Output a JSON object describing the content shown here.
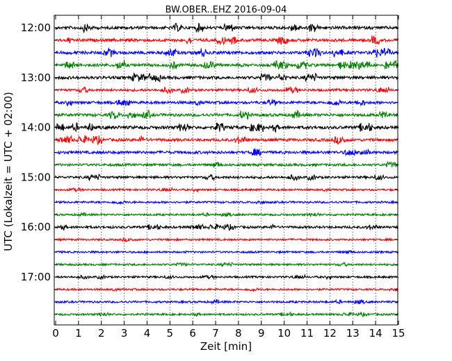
{
  "chart_data": {
    "type": "line",
    "title": "BW.OBER..EHZ 2016-09-04",
    "xlabel": "Zeit  [min]",
    "ylabel": "UTC (Lokalzeit = UTC + 02:00)",
    "xlim": [
      0,
      15
    ],
    "x_ticks": [
      "0",
      "1",
      "2",
      "3",
      "4",
      "5",
      "6",
      "7",
      "8",
      "9",
      "10",
      "11",
      "12",
      "13",
      "14",
      "15"
    ],
    "y_tick_labels": [
      "12:00",
      "13:00",
      "14:00",
      "15:00",
      "16:00",
      "17:00"
    ],
    "grid": "vertical dotted",
    "trace_interval_minutes": 15,
    "color_cycle": [
      "#000000",
      "#ff0000",
      "#0000ff",
      "#008000"
    ],
    "series": [
      {
        "start": "12:00",
        "level": 0.9
      },
      {
        "start": "12:15",
        "level": 0.9
      },
      {
        "start": "12:30",
        "level": 0.9
      },
      {
        "start": "12:45",
        "level": 0.9
      },
      {
        "start": "13:00",
        "level": 0.85
      },
      {
        "start": "13:15",
        "level": 0.6
      },
      {
        "start": "13:30",
        "level": 0.7
      },
      {
        "start": "13:45",
        "level": 0.85
      },
      {
        "start": "14:00",
        "level": 0.95
      },
      {
        "start": "14:15",
        "level": 0.85
      },
      {
        "start": "14:30",
        "level": 0.8
      },
      {
        "start": "14:45",
        "level": 0.6
      },
      {
        "start": "15:00",
        "level": 0.55
      },
      {
        "start": "15:15",
        "level": 0.3
      },
      {
        "start": "15:30",
        "level": 0.35
      },
      {
        "start": "15:45",
        "level": 0.3
      },
      {
        "start": "16:00",
        "level": 0.55
      },
      {
        "start": "16:15",
        "level": 0.3
      },
      {
        "start": "16:30",
        "level": 0.3
      },
      {
        "start": "16:45",
        "level": 0.3
      },
      {
        "start": "17:00",
        "level": 0.3
      },
      {
        "start": "17:15",
        "level": 0.3
      },
      {
        "start": "17:30",
        "level": 0.35
      },
      {
        "start": "17:45",
        "level": 0.3
      }
    ]
  }
}
